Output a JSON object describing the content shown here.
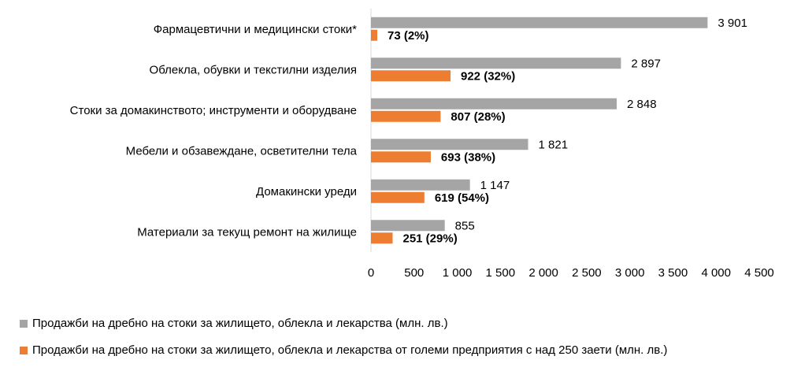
{
  "chart_data": {
    "type": "bar",
    "orientation": "horizontal",
    "categories": [
      "Фармацевтични и медицински стоки*",
      "Облекла, обувки и текстилни изделия",
      "Стоки за домакинството; инструменти и оборудване",
      "Мебели и обзавеждане, осветителни тела",
      "Домакински уреди",
      "Материали за текущ ремонт на жилище"
    ],
    "series": [
      {
        "name": "Продажби на дребно на стоки за жилището, облекла и лекарства (млн. лв.)",
        "color": "#A5A5A5",
        "values": [
          3901,
          2897,
          2848,
          1821,
          1147,
          855
        ],
        "labels": [
          "3 901",
          "2 897",
          "2 848",
          "1 821",
          "1 147",
          "855"
        ]
      },
      {
        "name": "Продажби на дребно на стоки за жилището, облекла и лекарства от големи предприятия с над 250 заети (млн. лв.)",
        "color": "#ED7D31",
        "values": [
          73,
          922,
          807,
          693,
          619,
          251
        ],
        "labels": [
          "73 (2%)",
          "922 (32%)",
          "807 (28%)",
          "693 (38%)",
          "619 (54%)",
          "251 (29%)"
        ]
      }
    ],
    "xlim": [
      0,
      4500
    ],
    "ticks": [
      0,
      500,
      1000,
      1500,
      2000,
      2500,
      3000,
      3500,
      4000,
      4500
    ],
    "tick_labels": [
      "0",
      "500",
      "1 000",
      "1 500",
      "2 000",
      "2 500",
      "3 000",
      "3 500",
      "4 000",
      "4 500"
    ],
    "legend_position": "bottom",
    "grid": false
  }
}
